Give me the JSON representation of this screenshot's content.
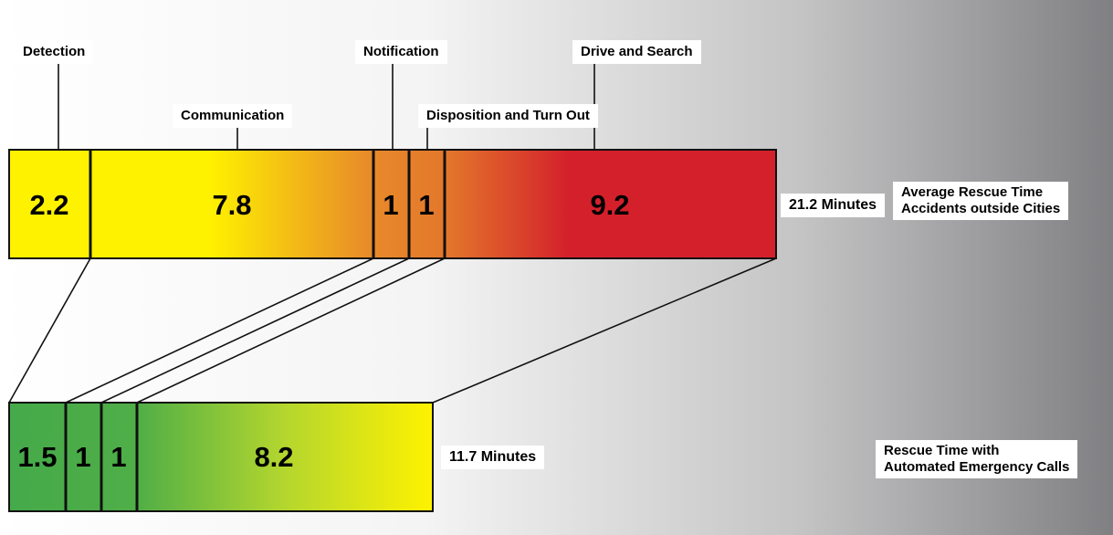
{
  "colors": {
    "yellow": "#fff200",
    "orange": "#e88a2a",
    "red": "#d4202b",
    "green_dark": "#45aa4a",
    "green_mid": "#8cc63e",
    "background_dark": "#808083"
  },
  "stage_labels": {
    "detection": "Detection",
    "communication": "Communication",
    "notification": "Notification",
    "disposition": "Disposition and Turn Out",
    "drive": "Drive and Search"
  },
  "top_bar": {
    "segments": [
      {
        "stage": "Detection",
        "value": "2.2"
      },
      {
        "stage": "Communication",
        "value": "7.8"
      },
      {
        "stage": "Notification",
        "value": "1"
      },
      {
        "stage": "Disposition and Turn Out",
        "value": "1"
      },
      {
        "stage": "Drive and Search",
        "value": "9.2"
      }
    ],
    "total": "21.2 Minutes",
    "description_line1": "Average Rescue Time",
    "description_line2": "Accidents outside Cities"
  },
  "bottom_bar": {
    "segments": [
      {
        "stage": "Communication",
        "value": "1.5"
      },
      {
        "stage": "Notification",
        "value": "1"
      },
      {
        "stage": "Disposition and Turn Out",
        "value": "1"
      },
      {
        "stage": "Drive and Search",
        "value": "8.2"
      }
    ],
    "total": "11.7 Minutes",
    "description_line1": "Rescue Time with",
    "description_line2": "Automated Emergency Calls"
  }
}
